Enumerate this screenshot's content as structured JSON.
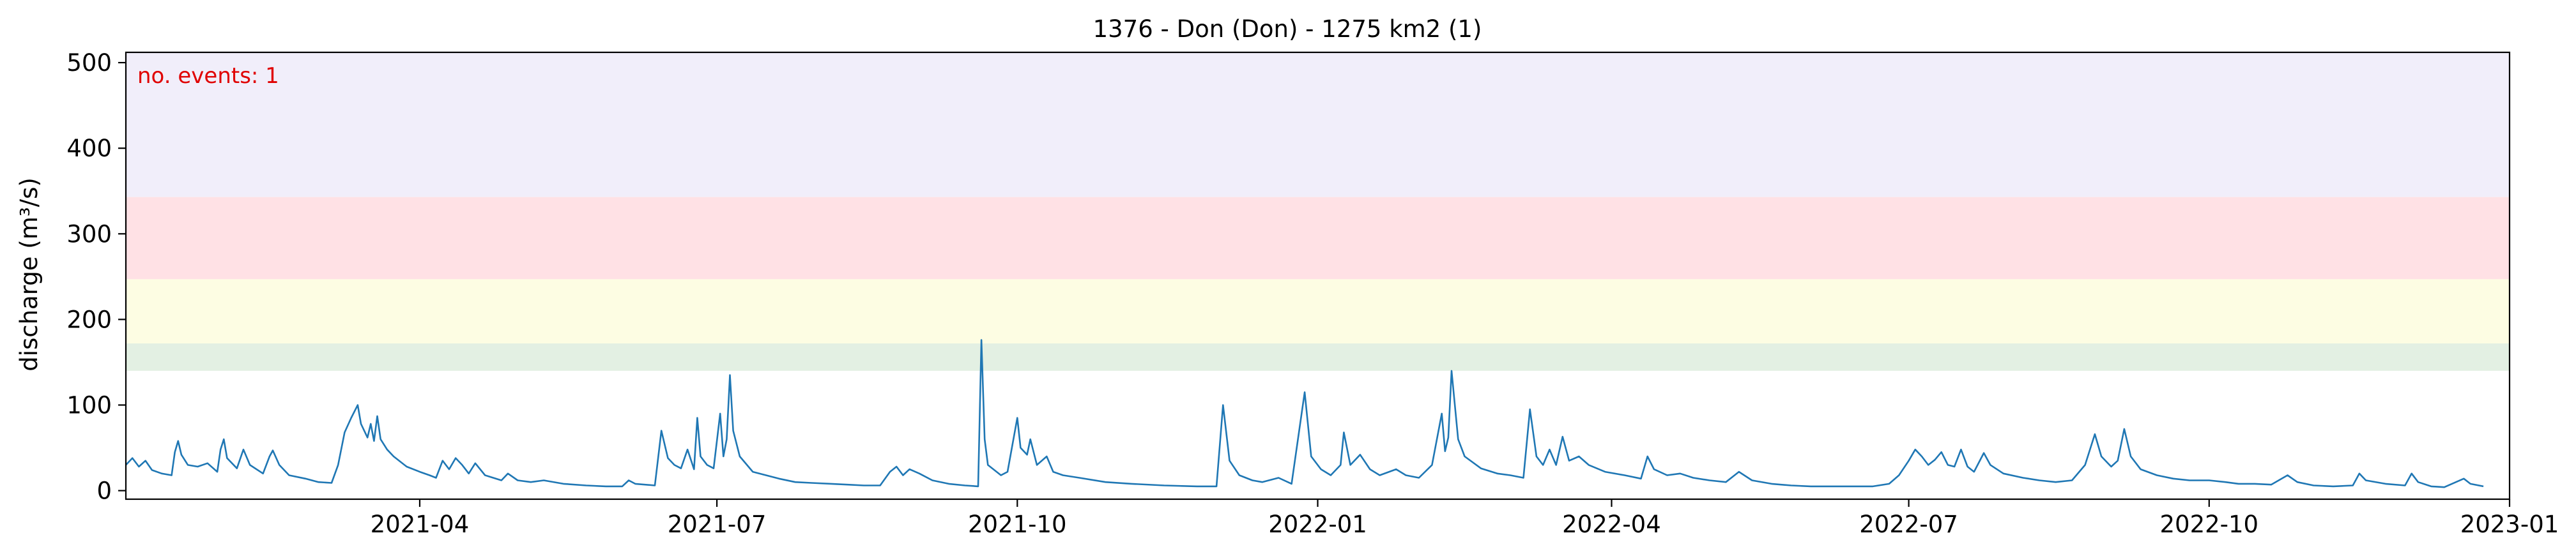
{
  "chart_data": {
    "type": "line",
    "title": "1376 - Don (Don) - 1275 km2 (1)",
    "xlabel": "",
    "ylabel": "discharge (m³/s)",
    "xlim": [
      "2021-01-01",
      "2023-01-01"
    ],
    "ylim": [
      -10,
      512
    ],
    "x_ticks": [
      "2021-04",
      "2021-07",
      "2021-10",
      "2022-01",
      "2022-04",
      "2022-07",
      "2022-10",
      "2023-01"
    ],
    "y_ticks": [
      0,
      100,
      200,
      300,
      400,
      500
    ],
    "grid": false,
    "annotation": {
      "text": "no. events: 1",
      "color": "#e00000",
      "placement": "top-left"
    },
    "threshold_bands": [
      {
        "from": 140,
        "to": 172,
        "color": "#e3f0e3"
      },
      {
        "from": 172,
        "to": 247,
        "color": "#fdfde3"
      },
      {
        "from": 247,
        "to": 343,
        "color": "#ffe1e5"
      },
      {
        "from": 343,
        "to": 512,
        "color": "#f1eefa"
      }
    ],
    "series": [
      {
        "color": "#1f77b4",
        "points": [
          [
            "2021-01-01",
            30
          ],
          [
            "2021-01-03",
            38
          ],
          [
            "2021-01-05",
            28
          ],
          [
            "2021-01-07",
            35
          ],
          [
            "2021-01-09",
            24
          ],
          [
            "2021-01-12",
            20
          ],
          [
            "2021-01-15",
            18
          ],
          [
            "2021-01-16",
            45
          ],
          [
            "2021-01-17",
            58
          ],
          [
            "2021-01-18",
            42
          ],
          [
            "2021-01-20",
            30
          ],
          [
            "2021-01-23",
            28
          ],
          [
            "2021-01-26",
            32
          ],
          [
            "2021-01-29",
            22
          ],
          [
            "2021-01-30",
            48
          ],
          [
            "2021-01-31",
            60
          ],
          [
            "2021-02-01",
            38
          ],
          [
            "2021-02-04",
            26
          ],
          [
            "2021-02-06",
            48
          ],
          [
            "2021-02-08",
            30
          ],
          [
            "2021-02-12",
            20
          ],
          [
            "2021-02-14",
            40
          ],
          [
            "2021-02-15",
            47
          ],
          [
            "2021-02-17",
            30
          ],
          [
            "2021-02-20",
            18
          ],
          [
            "2021-02-25",
            14
          ],
          [
            "2021-03-01",
            10
          ],
          [
            "2021-03-05",
            9
          ],
          [
            "2021-03-07",
            30
          ],
          [
            "2021-03-09",
            68
          ],
          [
            "2021-03-11",
            85
          ],
          [
            "2021-03-13",
            100
          ],
          [
            "2021-03-14",
            78
          ],
          [
            "2021-03-16",
            62
          ],
          [
            "2021-03-17",
            78
          ],
          [
            "2021-03-18",
            58
          ],
          [
            "2021-03-19",
            87
          ],
          [
            "2021-03-20",
            60
          ],
          [
            "2021-03-22",
            48
          ],
          [
            "2021-03-24",
            40
          ],
          [
            "2021-03-28",
            28
          ],
          [
            "2021-04-01",
            22
          ],
          [
            "2021-04-04",
            18
          ],
          [
            "2021-04-06",
            15
          ],
          [
            "2021-04-08",
            35
          ],
          [
            "2021-04-10",
            25
          ],
          [
            "2021-04-12",
            38
          ],
          [
            "2021-04-14",
            30
          ],
          [
            "2021-04-16",
            20
          ],
          [
            "2021-04-18",
            32
          ],
          [
            "2021-04-21",
            18
          ],
          [
            "2021-04-26",
            12
          ],
          [
            "2021-04-28",
            20
          ],
          [
            "2021-05-01",
            12
          ],
          [
            "2021-05-05",
            10
          ],
          [
            "2021-05-09",
            12
          ],
          [
            "2021-05-15",
            8
          ],
          [
            "2021-05-22",
            6
          ],
          [
            "2021-05-28",
            5
          ],
          [
            "2021-06-02",
            5
          ],
          [
            "2021-06-04",
            12
          ],
          [
            "2021-06-06",
            8
          ],
          [
            "2021-06-12",
            6
          ],
          [
            "2021-06-14",
            70
          ],
          [
            "2021-06-16",
            38
          ],
          [
            "2021-06-18",
            30
          ],
          [
            "2021-06-20",
            26
          ],
          [
            "2021-06-22",
            48
          ],
          [
            "2021-06-24",
            25
          ],
          [
            "2021-06-25",
            85
          ],
          [
            "2021-06-26",
            40
          ],
          [
            "2021-06-28",
            30
          ],
          [
            "2021-06-30",
            26
          ],
          [
            "2021-07-02",
            90
          ],
          [
            "2021-07-03",
            40
          ],
          [
            "2021-07-04",
            60
          ],
          [
            "2021-07-05",
            135
          ],
          [
            "2021-07-06",
            70
          ],
          [
            "2021-07-08",
            40
          ],
          [
            "2021-07-12",
            22
          ],
          [
            "2021-07-20",
            14
          ],
          [
            "2021-07-25",
            10
          ],
          [
            "2021-07-30",
            9
          ],
          [
            "2021-08-05",
            8
          ],
          [
            "2021-08-10",
            7
          ],
          [
            "2021-08-15",
            6
          ],
          [
            "2021-08-20",
            6
          ],
          [
            "2021-08-23",
            22
          ],
          [
            "2021-08-25",
            28
          ],
          [
            "2021-08-27",
            18
          ],
          [
            "2021-08-29",
            25
          ],
          [
            "2021-09-01",
            20
          ],
          [
            "2021-09-05",
            12
          ],
          [
            "2021-09-10",
            8
          ],
          [
            "2021-09-15",
            6
          ],
          [
            "2021-09-19",
            5
          ],
          [
            "2021-09-20",
            176
          ],
          [
            "2021-09-21",
            60
          ],
          [
            "2021-09-22",
            30
          ],
          [
            "2021-09-26",
            18
          ],
          [
            "2021-09-28",
            22
          ],
          [
            "2021-10-01",
            85
          ],
          [
            "2021-10-02",
            50
          ],
          [
            "2021-10-04",
            42
          ],
          [
            "2021-10-05",
            60
          ],
          [
            "2021-10-07",
            30
          ],
          [
            "2021-10-10",
            40
          ],
          [
            "2021-10-12",
            22
          ],
          [
            "2021-10-15",
            18
          ],
          [
            "2021-10-20",
            15
          ],
          [
            "2021-10-28",
            10
          ],
          [
            "2021-11-05",
            8
          ],
          [
            "2021-11-15",
            6
          ],
          [
            "2021-11-25",
            5
          ],
          [
            "2021-12-01",
            5
          ],
          [
            "2021-12-03",
            100
          ],
          [
            "2021-12-05",
            35
          ],
          [
            "2021-12-08",
            18
          ],
          [
            "2021-12-12",
            12
          ],
          [
            "2021-12-15",
            10
          ],
          [
            "2021-12-20",
            15
          ],
          [
            "2021-12-24",
            8
          ],
          [
            "2021-12-28",
            115
          ],
          [
            "2021-12-30",
            40
          ],
          [
            "2022-01-02",
            25
          ],
          [
            "2022-01-05",
            18
          ],
          [
            "2022-01-08",
            30
          ],
          [
            "2022-01-09",
            68
          ],
          [
            "2022-01-11",
            30
          ],
          [
            "2022-01-14",
            42
          ],
          [
            "2022-01-17",
            25
          ],
          [
            "2022-01-20",
            18
          ],
          [
            "2022-01-25",
            25
          ],
          [
            "2022-01-28",
            18
          ],
          [
            "2022-02-01",
            15
          ],
          [
            "2022-02-05",
            30
          ],
          [
            "2022-02-08",
            90
          ],
          [
            "2022-02-09",
            46
          ],
          [
            "2022-02-10",
            62
          ],
          [
            "2022-02-11",
            140
          ],
          [
            "2022-02-13",
            60
          ],
          [
            "2022-02-15",
            40
          ],
          [
            "2022-02-20",
            26
          ],
          [
            "2022-02-25",
            20
          ],
          [
            "2022-03-01",
            18
          ],
          [
            "2022-03-05",
            15
          ],
          [
            "2022-03-07",
            95
          ],
          [
            "2022-03-09",
            40
          ],
          [
            "2022-03-11",
            30
          ],
          [
            "2022-03-13",
            48
          ],
          [
            "2022-03-15",
            30
          ],
          [
            "2022-03-17",
            63
          ],
          [
            "2022-03-19",
            35
          ],
          [
            "2022-03-22",
            40
          ],
          [
            "2022-03-25",
            30
          ],
          [
            "2022-03-30",
            22
          ],
          [
            "2022-04-05",
            18
          ],
          [
            "2022-04-10",
            14
          ],
          [
            "2022-04-12",
            40
          ],
          [
            "2022-04-14",
            25
          ],
          [
            "2022-04-18",
            18
          ],
          [
            "2022-04-22",
            20
          ],
          [
            "2022-04-26",
            15
          ],
          [
            "2022-05-01",
            12
          ],
          [
            "2022-05-06",
            10
          ],
          [
            "2022-05-10",
            22
          ],
          [
            "2022-05-14",
            12
          ],
          [
            "2022-05-20",
            8
          ],
          [
            "2022-05-26",
            6
          ],
          [
            "2022-06-01",
            5
          ],
          [
            "2022-06-05",
            5
          ],
          [
            "2022-06-10",
            5
          ],
          [
            "2022-06-15",
            5
          ],
          [
            "2022-06-20",
            5
          ],
          [
            "2022-06-25",
            8
          ],
          [
            "2022-06-28",
            18
          ],
          [
            "2022-07-01",
            35
          ],
          [
            "2022-07-03",
            48
          ],
          [
            "2022-07-05",
            40
          ],
          [
            "2022-07-07",
            30
          ],
          [
            "2022-07-09",
            36
          ],
          [
            "2022-07-11",
            45
          ],
          [
            "2022-07-13",
            30
          ],
          [
            "2022-07-15",
            28
          ],
          [
            "2022-07-17",
            48
          ],
          [
            "2022-07-19",
            28
          ],
          [
            "2022-07-21",
            22
          ],
          [
            "2022-07-24",
            44
          ],
          [
            "2022-07-26",
            30
          ],
          [
            "2022-07-30",
            20
          ],
          [
            "2022-08-05",
            15
          ],
          [
            "2022-08-10",
            12
          ],
          [
            "2022-08-15",
            10
          ],
          [
            "2022-08-20",
            12
          ],
          [
            "2022-08-24",
            30
          ],
          [
            "2022-08-27",
            66
          ],
          [
            "2022-08-29",
            40
          ],
          [
            "2022-09-01",
            28
          ],
          [
            "2022-09-03",
            35
          ],
          [
            "2022-09-05",
            72
          ],
          [
            "2022-09-07",
            40
          ],
          [
            "2022-09-10",
            25
          ],
          [
            "2022-09-15",
            18
          ],
          [
            "2022-09-20",
            14
          ],
          [
            "2022-09-25",
            12
          ],
          [
            "2022-10-01",
            12
          ],
          [
            "2022-10-06",
            10
          ],
          [
            "2022-10-10",
            8
          ],
          [
            "2022-10-15",
            8
          ],
          [
            "2022-10-20",
            7
          ],
          [
            "2022-10-25",
            18
          ],
          [
            "2022-10-28",
            10
          ],
          [
            "2022-11-02",
            6
          ],
          [
            "2022-11-08",
            5
          ],
          [
            "2022-11-14",
            6
          ],
          [
            "2022-11-16",
            20
          ],
          [
            "2022-11-18",
            12
          ],
          [
            "2022-11-24",
            8
          ],
          [
            "2022-11-30",
            6
          ],
          [
            "2022-12-02",
            20
          ],
          [
            "2022-12-04",
            10
          ],
          [
            "2022-12-08",
            5
          ],
          [
            "2022-12-12",
            4
          ],
          [
            "2022-12-18",
            14
          ],
          [
            "2022-12-20",
            8
          ],
          [
            "2022-12-24",
            5
          ]
        ]
      }
    ]
  }
}
